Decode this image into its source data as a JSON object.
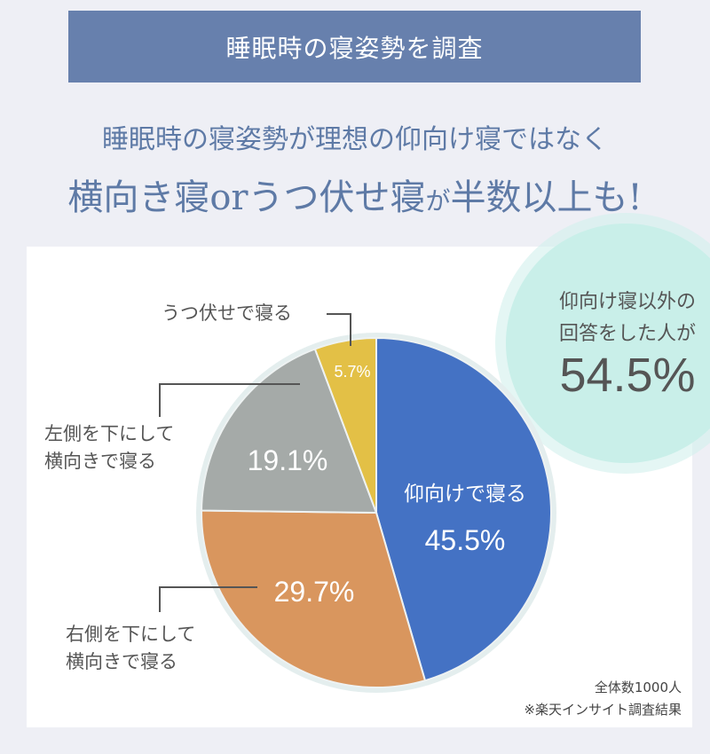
{
  "banner": "睡眠時の寝姿勢を調査",
  "subtitle_line1": "睡眠時の寝姿勢が理想の仰向け寝ではなく",
  "subtitle_line2_a": "横向き寝orうつ伏せ寝",
  "subtitle_line2_b": "が",
  "subtitle_line2_c": "半数以上も!",
  "callout": {
    "line1": "仰向け寝以外の",
    "line2": "回答をした人が",
    "value": "54.5%"
  },
  "notes": {
    "total": "全体数1000人",
    "source": "※楽天インサイト調査結果"
  },
  "chart_data": {
    "type": "pie",
    "title": "睡眠時の寝姿勢を調査",
    "categories": [
      "仰向けで寝る",
      "右側を下にして横向きで寝る",
      "左側を下にして横向きで寝る",
      "うつ伏せで寝る"
    ],
    "values": [
      45.5,
      29.7,
      19.1,
      5.7
    ],
    "value_labels": [
      "45.5%",
      "29.7%",
      "19.1%",
      "5.7%"
    ],
    "colors": [
      "#4472c4",
      "#d9965e",
      "#a5aaa8",
      "#e3c046"
    ],
    "outer_labels": {
      "prone": "うつ伏せで寝る",
      "left": "左側を下にして\n横向きで寝る",
      "right": "右側を下にして\n横向きで寝る"
    }
  }
}
